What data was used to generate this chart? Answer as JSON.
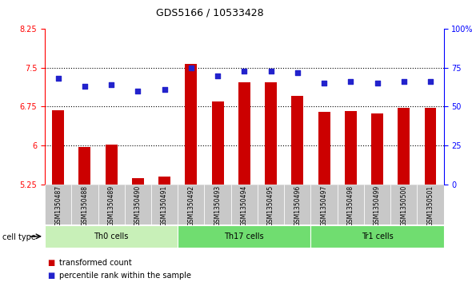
{
  "title": "GDS5166 / 10533428",
  "samples": [
    "GSM1350487",
    "GSM1350488",
    "GSM1350489",
    "GSM1350490",
    "GSM1350491",
    "GSM1350492",
    "GSM1350493",
    "GSM1350494",
    "GSM1350495",
    "GSM1350496",
    "GSM1350497",
    "GSM1350498",
    "GSM1350499",
    "GSM1350500",
    "GSM1350501"
  ],
  "transformed_count": [
    6.68,
    5.97,
    6.01,
    5.36,
    5.39,
    7.57,
    6.85,
    7.22,
    7.22,
    6.95,
    6.65,
    6.66,
    6.62,
    6.72,
    6.72
  ],
  "percentile_rank": [
    68,
    63,
    64,
    60,
    61,
    75,
    70,
    73,
    73,
    72,
    65,
    66,
    65,
    66,
    66
  ],
  "ylim_left": [
    5.25,
    8.25
  ],
  "ylim_right": [
    0,
    100
  ],
  "yticks_left": [
    5.25,
    6.0,
    6.75,
    7.5,
    8.25
  ],
  "yticks_left_labels": [
    "5.25",
    "6",
    "6.75",
    "7.5",
    "8.25"
  ],
  "yticks_right": [
    0,
    25,
    50,
    75,
    100
  ],
  "yticks_right_labels": [
    "0",
    "25",
    "50",
    "75",
    "100%"
  ],
  "bar_color": "#cc0000",
  "dot_color": "#2222cc",
  "bar_bottom": 5.25,
  "hlines": [
    6.0,
    6.75,
    7.5
  ],
  "legend_bar_label": "transformed count",
  "legend_dot_label": "percentile rank within the sample",
  "cell_type_label": "cell type",
  "group_defs": [
    {
      "start": 0,
      "end": 4,
      "label": "Th0 cells",
      "color": "#c8f0b8"
    },
    {
      "start": 5,
      "end": 9,
      "label": "Th17 cells",
      "color": "#70dd70"
    },
    {
      "start": 10,
      "end": 14,
      "label": "Tr1 cells",
      "color": "#70dd70"
    }
  ],
  "sample_bg": "#c8c8c8",
  "title_fontsize": 9,
  "tick_fontsize": 7
}
